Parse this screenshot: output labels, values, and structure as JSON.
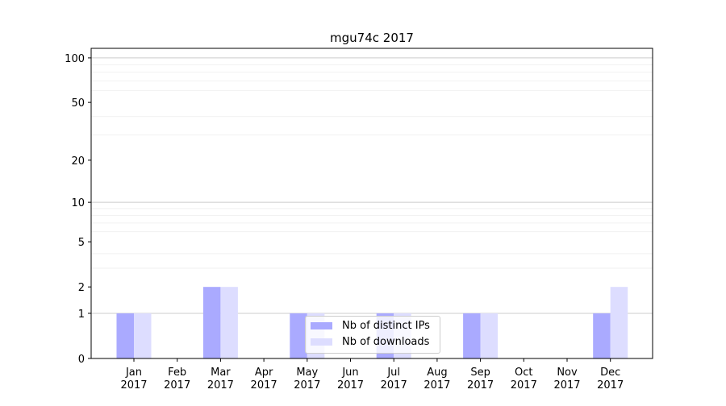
{
  "chart_data": {
    "type": "bar",
    "title": "mgu74c 2017",
    "xlabel": "",
    "ylabel": "",
    "yscale": "symlog",
    "ylim": [
      0,
      116
    ],
    "yticks": [
      0,
      1,
      2,
      5,
      10,
      20,
      50,
      100
    ],
    "grid": true,
    "legend_position": "bottom-center",
    "categories": [
      "Jan\n2017",
      "Feb\n2017",
      "Mar\n2017",
      "Apr\n2017",
      "May\n2017",
      "Jun\n2017",
      "Jul\n2017",
      "Aug\n2017",
      "Sep\n2017",
      "Oct\n2017",
      "Nov\n2017",
      "Dec\n2017"
    ],
    "series": [
      {
        "name": "Nb of distinct IPs",
        "color": "#aaaaff",
        "values": [
          1,
          0,
          2,
          0,
          1,
          0,
          1,
          0,
          1,
          0,
          0,
          1
        ]
      },
      {
        "name": "Nb of downloads",
        "color": "#ddddff",
        "values": [
          1,
          0,
          2,
          0,
          1,
          0,
          1,
          0,
          1,
          0,
          0,
          2
        ]
      }
    ]
  }
}
